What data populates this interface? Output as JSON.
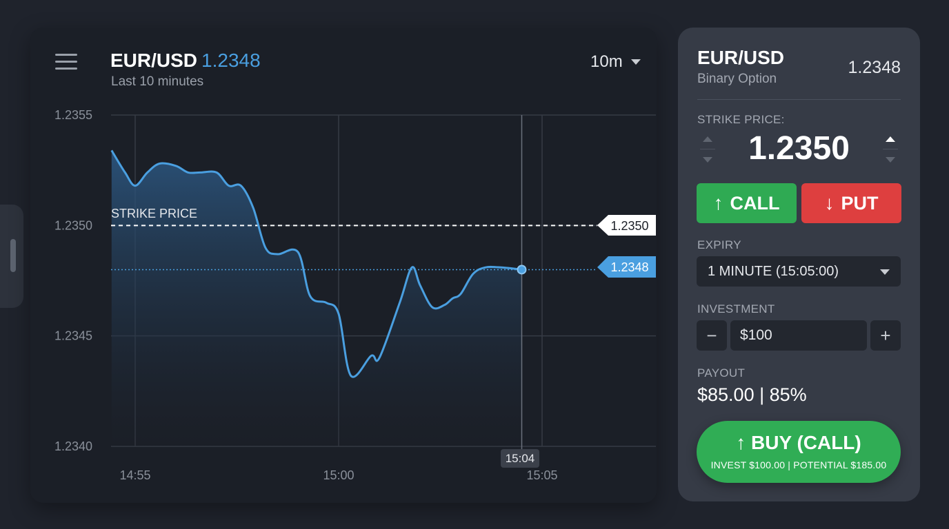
{
  "chart": {
    "symbol": "EUR/USD",
    "price": "1.2348",
    "subtitle": "Last 10 minutes",
    "timeframe": "10m",
    "strike_label": "STRIKE PRICE",
    "strike_tag": "1.2350",
    "current_tag": "1.2348",
    "cursor_time": "15:04",
    "line_color": "#4a9fe0"
  },
  "chart_data": {
    "type": "area",
    "yticks": [
      "1.2355",
      "1.2350",
      "1.2345",
      "1.2340"
    ],
    "xticks": [
      "14:55",
      "15:00",
      "15:05"
    ],
    "ylim": [
      1.234,
      1.2355
    ],
    "xlim": [
      -0.58,
      10.75
    ],
    "strike": 1.235,
    "current": 1.2348,
    "cursor_x": 9.5,
    "x": [
      -0.58,
      -0.25,
      0,
      0.3,
      0.6,
      1.0,
      1.3,
      1.6,
      2.0,
      2.3,
      2.6,
      2.9,
      3.2,
      3.5,
      4.0,
      4.3,
      4.7,
      5.0,
      5.3,
      5.8,
      6.0,
      6.5,
      6.8,
      7.0,
      7.3,
      7.6,
      7.8,
      8.0,
      8.3,
      8.6,
      9.0,
      9.5
    ],
    "y": [
      1.23534,
      1.23524,
      1.23518,
      1.23524,
      1.23528,
      1.23527,
      1.23524,
      1.23524,
      1.23524,
      1.23518,
      1.23518,
      1.23508,
      1.2349,
      1.23487,
      1.23488,
      1.23468,
      1.23465,
      1.2346,
      1.23432,
      1.23441,
      1.2344,
      1.23465,
      1.23481,
      1.23473,
      1.23463,
      1.23464,
      1.23467,
      1.23469,
      1.23478,
      1.23481,
      1.23481,
      1.2348
    ]
  },
  "trade": {
    "symbol": "EUR/USD",
    "type": "Binary Option",
    "price": "1.2348",
    "strike_label": "STRIKE PRICE:",
    "strike_value": "1.2350",
    "call_label": "CALL",
    "put_label": "PUT",
    "expiry_label": "EXPIRY",
    "expiry_value": "1 MINUTE (15:05:00)",
    "investment_label": "INVESTMENT",
    "investment_value": "$100",
    "payout_label": "PAYOUT",
    "payout_value": "$85.00 | 85%",
    "buy_label": "BUY (CALL)",
    "buy_sub": "INVEST $100.00 | POTENTIAL $185.00",
    "call_color": "#2faa53",
    "put_color": "#de3f3f"
  }
}
